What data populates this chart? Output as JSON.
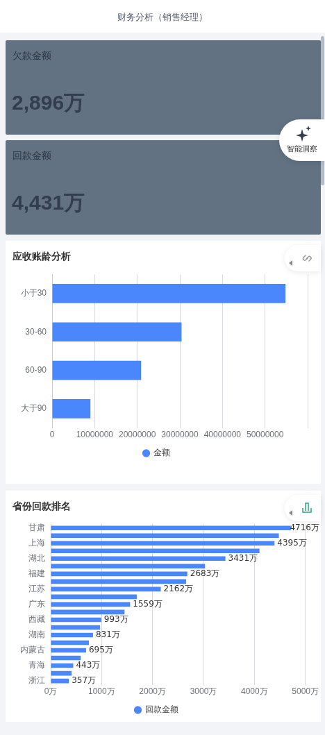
{
  "chart_data": [
    {
      "type": "other",
      "title": "财务分析（销售经理）"
    },
    {
      "type": "other",
      "title": "欠款金额",
      "annotations": [
        "2,896万",
        "智能洞察"
      ]
    },
    {
      "type": "other",
      "title": "回款金额",
      "annotations": [
        "4,431万"
      ]
    },
    {
      "type": "bar",
      "title": "应收账龄分析",
      "orientation": "horizontal",
      "categories": [
        "小于30",
        "30-60",
        "60-90",
        "大于90"
      ],
      "series": [
        {
          "name": "金额",
          "color": "#4a86fc",
          "values": [
            54800000,
            30400000,
            20900000,
            9000000
          ]
        }
      ],
      "xlim": [
        0,
        60000000
      ],
      "xticks": [
        0,
        10000000,
        20000000,
        30000000,
        40000000,
        50000000,
        {
          "value": 60000000,
          "label": null
        }
      ],
      "grid": "x",
      "legend": "bottom"
    },
    {
      "type": "bar",
      "title": "省份回款排名",
      "orientation": "horizontal",
      "categories": [
        "甘肃",
        null,
        "上海",
        null,
        "湖北",
        null,
        "福建",
        null,
        "江苏",
        null,
        "广东",
        null,
        "西藏",
        null,
        "湖南",
        null,
        "内蒙古",
        null,
        "青海",
        null,
        "浙江"
      ],
      "series": [
        {
          "name": "回款金额",
          "color": "#4a86fc",
          "values": [
            4716,
            4480,
            4395,
            4100,
            3431,
            3030,
            2683,
            2660,
            2162,
            1690,
            1559,
            1450,
            993,
            970,
            831,
            750,
            695,
            590,
            443,
            410,
            357
          ],
          "value_labels": [
            "4716万",
            null,
            "4395万",
            null,
            "3431万",
            null,
            "2683万",
            null,
            "2162万",
            null,
            "1559万",
            null,
            "993万",
            null,
            "831万",
            null,
            "695万",
            null,
            "443万",
            null,
            "357万"
          ]
        }
      ],
      "xlim": [
        0,
        5000
      ],
      "xticks": [
        {
          "value": 0,
          "label": "0万"
        },
        {
          "value": 1000,
          "label": "1000万"
        },
        {
          "value": 2000,
          "label": "2000万"
        },
        {
          "value": 3000,
          "label": "3000万"
        },
        {
          "value": 4000,
          "label": "4000万"
        },
        {
          "value": 5000,
          "label": "5000万"
        }
      ],
      "grid": "x",
      "legend": "bottom"
    }
  ]
}
